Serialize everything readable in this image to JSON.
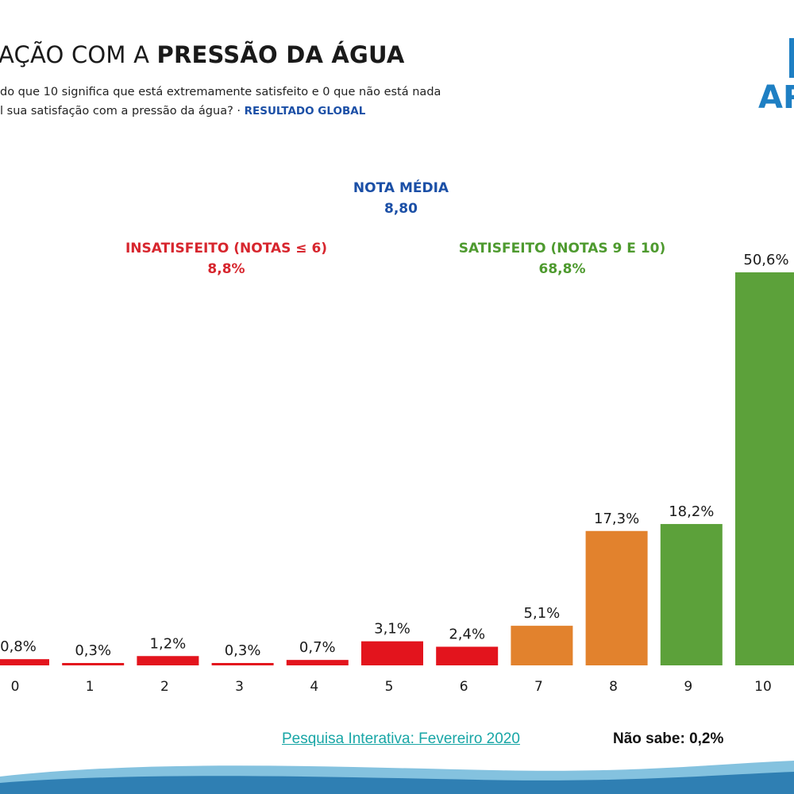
{
  "header": {
    "title_normal": "AÇÃO COM A ",
    "title_bold": "PRESSÃO DA ÁGUA",
    "subtitle_line1": "do que 10 significa que está extremamente satisfeito e 0 que não está nada",
    "subtitle_line2": "l sua satisfação com a pressão da água? · ",
    "subtitle_highlight": "RESULTADO GLOBAL"
  },
  "logo": {
    "text": "AR"
  },
  "stats": {
    "media": {
      "label": "NOTA MÉDIA",
      "value": "8,80"
    },
    "insatisfeito": {
      "label": "INSATISFEITO (NOTAS ≤ 6)",
      "value": "8,8%"
    },
    "satisfeito": {
      "label": "SATISFEITO (NOTAS 9 E 10)",
      "value": "68,8%"
    }
  },
  "colors": {
    "red": "#e3141d",
    "orange": "#e2822d",
    "green": "#5ca13a",
    "blue": "#1b4fa6"
  },
  "chart_data": {
    "type": "bar",
    "categories": [
      "0",
      "1",
      "2",
      "3",
      "4",
      "5",
      "6",
      "7",
      "8",
      "9",
      "10"
    ],
    "values": [
      0.8,
      0.3,
      1.2,
      0.3,
      0.7,
      3.1,
      2.4,
      5.1,
      17.3,
      18.2,
      50.6
    ],
    "data_labels": [
      "0,8%",
      "0,3%",
      "1,2%",
      "0,3%",
      "0,7%",
      "3,1%",
      "2,4%",
      "5,1%",
      "17,3%",
      "18,2%",
      "50,6%"
    ],
    "bar_colors": [
      "red",
      "red",
      "red",
      "red",
      "red",
      "red",
      "red",
      "orange",
      "orange",
      "green",
      "green"
    ],
    "ylim": [
      0,
      50.6
    ],
    "grid": false,
    "title": "",
    "xlabel": "",
    "ylabel": ""
  },
  "footer": {
    "source": "Pesquisa Interativa: Fevereiro 2020",
    "nao_sabe": "Não sabe: 0,2%"
  }
}
